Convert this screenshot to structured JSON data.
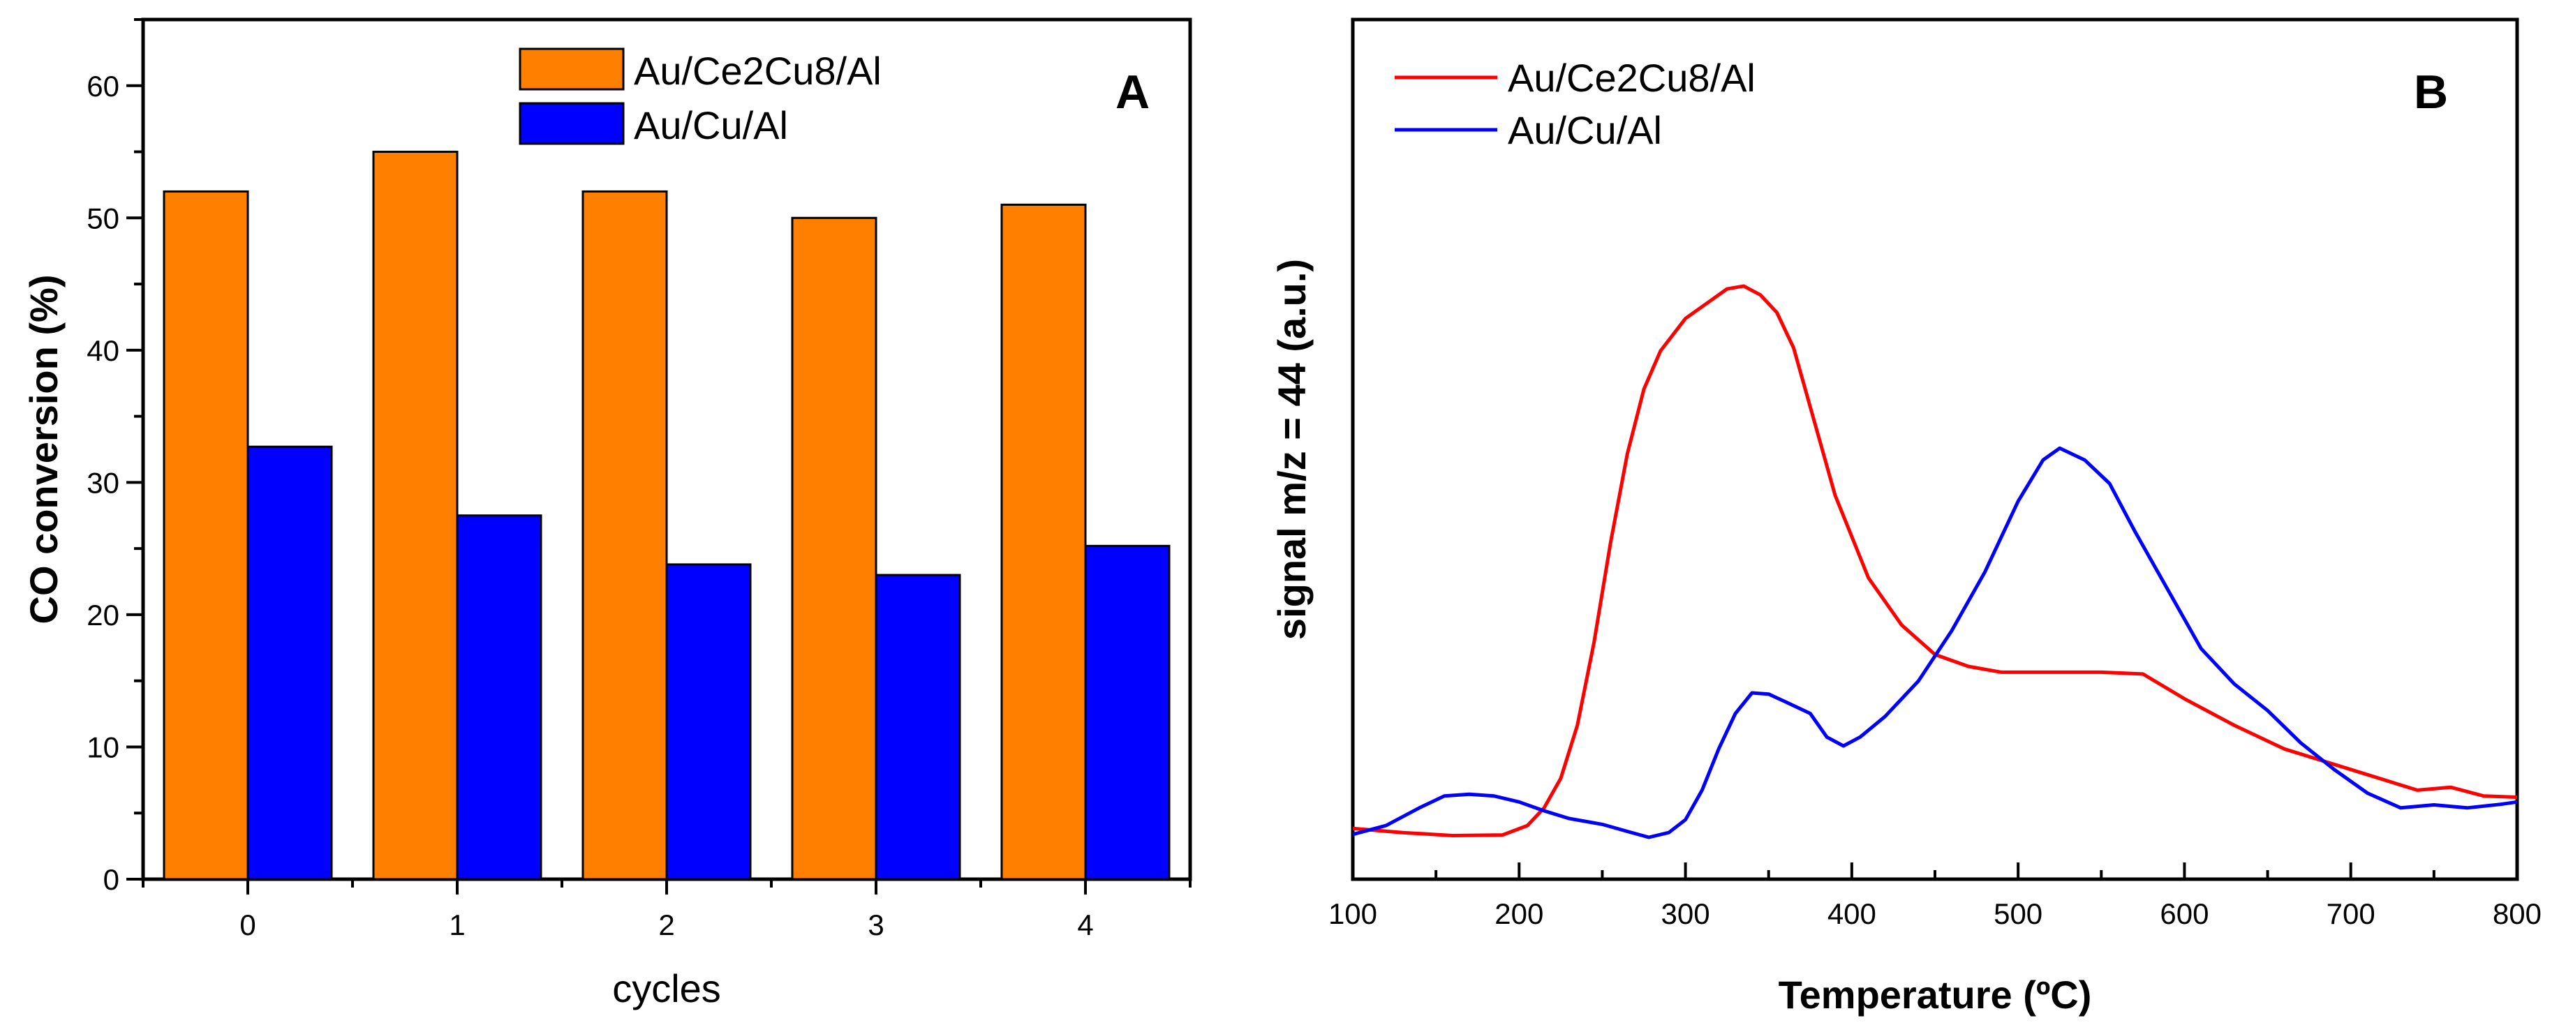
{
  "chart_data": [
    {
      "type": "bar",
      "panel_label": "A",
      "title": "",
      "xlabel": "cycles",
      "ylabel": "CO conversion (%)",
      "categories": [
        "0",
        "1",
        "2",
        "3",
        "4"
      ],
      "ylim": [
        0,
        65
      ],
      "yticks": [
        0,
        10,
        20,
        30,
        40,
        50,
        60
      ],
      "legend_position": "top-center",
      "series": [
        {
          "name": "Au/Ce2Cu8/Al",
          "color": "#ff8000",
          "values": [
            52,
            55,
            52,
            50,
            51
          ]
        },
        {
          "name": "Au/Cu/Al",
          "color": "#0000ff",
          "values": [
            32.7,
            27.5,
            23.8,
            23.0,
            25.2
          ]
        }
      ]
    },
    {
      "type": "line",
      "panel_label": "B",
      "title": "",
      "xlabel": "Temperature (ºC)",
      "ylabel": "signal m/z = 44 (a.u.)",
      "xlim": [
        100,
        800
      ],
      "xticks": [
        100,
        200,
        300,
        400,
        500,
        600,
        700,
        800
      ],
      "ylim": [
        0,
        100
      ],
      "yticks_shown": false,
      "legend_position": "top-left",
      "series": [
        {
          "name": "Au/Ce2Cu8/Al",
          "color": "#ff0000",
          "x": [
            100,
            130,
            160,
            190,
            205,
            215,
            225,
            235,
            245,
            255,
            265,
            275,
            285,
            300,
            315,
            325,
            335,
            345,
            355,
            365,
            375,
            390,
            410,
            430,
            450,
            470,
            490,
            510,
            530,
            550,
            575,
            600,
            630,
            660,
            700,
            740,
            760,
            780,
            800
          ],
          "y": [
            1.5,
            0.8,
            0.3,
            0.4,
            2.0,
            5.0,
            10.0,
            19.0,
            33.0,
            50.0,
            65.0,
            76.0,
            82.5,
            88.0,
            91.0,
            93.0,
            93.5,
            92.0,
            89.0,
            83.0,
            73.0,
            58.0,
            44.0,
            36.0,
            31.0,
            29.0,
            28.0,
            28.0,
            28.0,
            28.0,
            27.7,
            23.5,
            19.0,
            15.0,
            11.5,
            8.0,
            8.5,
            7.0,
            6.8
          ]
        },
        {
          "name": "Au/Cu/Al",
          "color": "#0000ff",
          "x": [
            100,
            120,
            140,
            155,
            170,
            185,
            200,
            215,
            230,
            250,
            265,
            278,
            290,
            300,
            310,
            320,
            330,
            340,
            350,
            360,
            375,
            385,
            395,
            405,
            420,
            440,
            460,
            480,
            500,
            515,
            525,
            540,
            555,
            570,
            590,
            610,
            630,
            650,
            670,
            690,
            710,
            730,
            750,
            770,
            790,
            800
          ],
          "y": [
            0.5,
            2.0,
            5.0,
            7.0,
            7.3,
            7.0,
            6.0,
            4.5,
            3.2,
            2.2,
            1.0,
            0.0,
            0.8,
            3.0,
            8.0,
            15.0,
            21.0,
            24.5,
            24.3,
            23.0,
            21.0,
            17.0,
            15.5,
            17.0,
            20.5,
            26.5,
            35.0,
            45.0,
            57.0,
            64.0,
            66.0,
            64.0,
            60.0,
            52.0,
            42.0,
            32.0,
            26.0,
            21.5,
            16.0,
            11.5,
            7.5,
            5.0,
            5.5,
            5.0,
            5.6,
            6.0
          ]
        }
      ]
    }
  ]
}
